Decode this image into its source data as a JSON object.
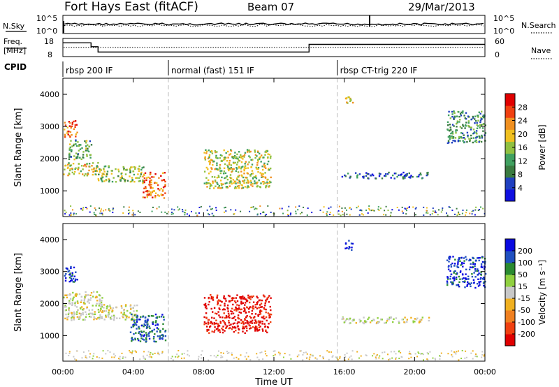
{
  "header": {
    "title": "Fort Hays East (fitACF)",
    "beam": "Beam 07",
    "date": "29/Mar/2013"
  },
  "strip": {
    "nsky_label": "N.Sky",
    "nsky_ticks": [
      "10^5",
      "10^0"
    ],
    "nsearch_label": "N.Search",
    "nsearch_ticks": [
      "10^5",
      "10^0"
    ],
    "freq_label_1": "Freq.",
    "freq_label_2": "[MHz]",
    "freq_ticks": [
      "18",
      "8"
    ],
    "nave_label": "Nave",
    "nave_ticks": [
      "60",
      "0"
    ],
    "cpid_label": "CPID"
  },
  "cpid_segments": [
    {
      "start": 0,
      "label": "rbsp 200 IF"
    },
    {
      "start": 6,
      "label": "normal (fast) 151 IF"
    },
    {
      "start": 15.6,
      "label": "rbsp CT-trig 220 IF"
    }
  ],
  "freq_series": [
    {
      "t0": 0,
      "t1": 1.6,
      "mhz": 16.5
    },
    {
      "t0": 1.6,
      "t1": 2.0,
      "mhz": 14
    },
    {
      "t0": 2.0,
      "t1": 14.0,
      "mhz": 10.5
    },
    {
      "t0": 14.0,
      "t1": 24.0,
      "mhz": 15.5
    }
  ],
  "chart_data": [
    {
      "type": "heatmap",
      "ylabel": "Slant Range [km]",
      "xlabel": "Time UT",
      "x_ticks": [
        "00:00",
        "04:00",
        "08:00",
        "12:00",
        "16:00",
        "20:00",
        "00:00"
      ],
      "xlim": [
        0,
        24
      ],
      "y_ticks": [
        "4000",
        "3000",
        "2000",
        "1000"
      ],
      "ylim": [
        200,
        4500
      ],
      "colorbar": {
        "label": "Power [dB]",
        "ticks": [
          "28",
          "24",
          "20",
          "16",
          "12",
          "8",
          "4"
        ],
        "range": [
          0,
          30
        ],
        "colors": [
          "#1010e0",
          "#2040c0",
          "#3a7a40",
          "#40a060",
          "#90c040",
          "#f0c020",
          "#f09020",
          "#f04010",
          "#e00000"
        ]
      },
      "regions": [
        {
          "t0": 0.0,
          "t1": 0.8,
          "r0": 2700,
          "r1": 3200,
          "value": 24
        },
        {
          "t0": 0.3,
          "t1": 1.6,
          "r0": 2000,
          "r1": 2600,
          "value": 12
        },
        {
          "t0": 0.0,
          "t1": 2.0,
          "r0": 1500,
          "r1": 1900,
          "value": 18
        },
        {
          "t0": 1.8,
          "t1": 4.6,
          "r0": 1300,
          "r1": 1800,
          "value": 14
        },
        {
          "t0": 4.5,
          "t1": 5.8,
          "r0": 800,
          "r1": 1600,
          "value": 24
        },
        {
          "t0": 8.0,
          "t1": 11.8,
          "r0": 1100,
          "r1": 2300,
          "value": 16
        },
        {
          "t0": 15.8,
          "t1": 20.8,
          "r0": 1400,
          "r1": 1600,
          "value": 6
        },
        {
          "t0": 21.8,
          "t1": 24.0,
          "r0": 2500,
          "r1": 3500,
          "value": 10
        },
        {
          "t0": 16.0,
          "t1": 16.5,
          "r0": 3700,
          "r1": 4000,
          "value": 18
        }
      ]
    },
    {
      "type": "heatmap",
      "ylabel": "Slant Range [km]",
      "xlabel": "Time UT",
      "x_ticks": [
        "00:00",
        "04:00",
        "08:00",
        "12:00",
        "16:00",
        "20:00",
        "00:00"
      ],
      "xlim": [
        0,
        24
      ],
      "y_ticks": [
        "4000",
        "3000",
        "2000",
        "1000"
      ],
      "ylim": [
        200,
        4500
      ],
      "colorbar": {
        "label": "Velocity [m s⁻¹]",
        "ticks": [
          "200",
          "100",
          "50",
          "15",
          "-15",
          "-50",
          "-100",
          "-200"
        ],
        "range": [
          -250,
          250
        ],
        "colors": [
          "#e00000",
          "#f04010",
          "#f08020",
          "#f0b020",
          "#c8c8c8",
          "#90d040",
          "#2a8a30",
          "#2050c0",
          "#0a0ae0"
        ]
      },
      "regions": [
        {
          "t0": 0.0,
          "t1": 0.8,
          "r0": 2700,
          "r1": 3200,
          "value": 180
        },
        {
          "t0": 0.0,
          "t1": 2.2,
          "r0": 1500,
          "r1": 2400,
          "value": 0
        },
        {
          "t0": 2.0,
          "t1": 4.2,
          "r0": 1500,
          "r1": 2000,
          "value": 0
        },
        {
          "t0": 3.8,
          "t1": 5.8,
          "r0": 800,
          "r1": 1700,
          "value": 150
        },
        {
          "t0": 8.0,
          "t1": 11.8,
          "r0": 1100,
          "r1": 2300,
          "value": -220
        },
        {
          "t0": 15.8,
          "t1": 20.8,
          "r0": 1400,
          "r1": 1600,
          "value": 0
        },
        {
          "t0": 21.8,
          "t1": 24.0,
          "r0": 2500,
          "r1": 3500,
          "value": 180
        },
        {
          "t0": 16.0,
          "t1": 16.5,
          "r0": 3700,
          "r1": 4000,
          "value": 200
        }
      ]
    }
  ]
}
